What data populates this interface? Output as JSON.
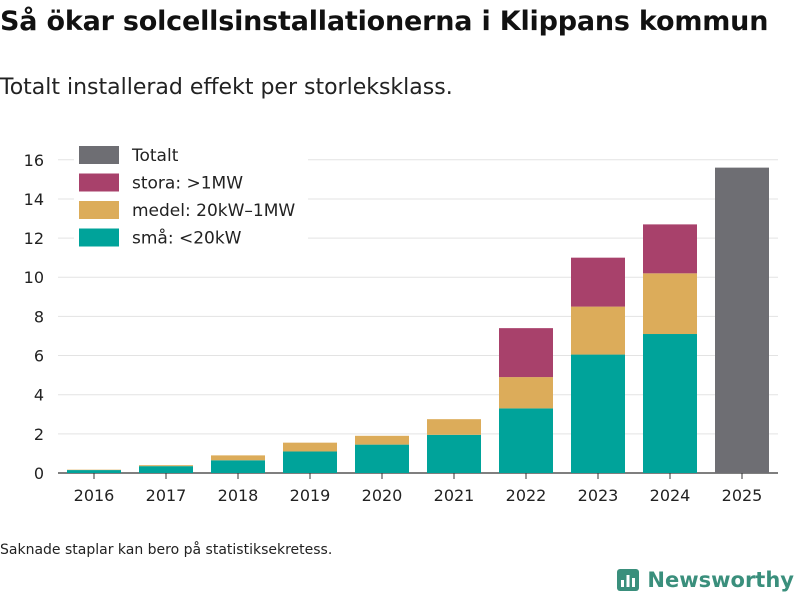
{
  "title": "Så ökar solcellsinstallationerna i Klippans kommun",
  "subtitle": "Totalt installerad effekt per storleksklass.",
  "footnote": "Saknade staplar kan bero på statistiksekretess.",
  "brand": {
    "name": "Newsworthy",
    "logo_icon": "bar-chart-logo-icon"
  },
  "colors": {
    "totalt": "#6e6e73",
    "stora": "#a8416b",
    "medel": "#dcac5a",
    "sma": "#00a39a"
  },
  "chart_data": {
    "type": "bar",
    "stacked": true,
    "title": "Så ökar solcellsinstallationerna i Klippans kommun",
    "subtitle": "Totalt installerad effekt per storleksklass.",
    "xlabel": "",
    "ylabel": "",
    "ylim": [
      0,
      16.5
    ],
    "yticks": [
      0,
      2,
      4,
      6,
      8,
      10,
      12,
      14,
      16
    ],
    "grid": true,
    "legend_position": "top-left",
    "categories": [
      "2016",
      "2017",
      "2018",
      "2019",
      "2020",
      "2021",
      "2022",
      "2023",
      "2024",
      "2025"
    ],
    "series": [
      {
        "name": "små: <20kW",
        "key": "sma",
        "values": [
          0.15,
          0.35,
          0.65,
          1.1,
          1.45,
          1.95,
          3.3,
          6.05,
          7.1,
          null
        ]
      },
      {
        "name": "medel: 20kW–1MW",
        "key": "medel",
        "values": [
          0.02,
          0.05,
          0.25,
          0.45,
          0.45,
          0.8,
          1.6,
          2.45,
          3.1,
          null
        ]
      },
      {
        "name": "stora: >1MW",
        "key": "stora",
        "values": [
          null,
          null,
          null,
          null,
          null,
          null,
          2.5,
          2.5,
          2.5,
          null
        ]
      },
      {
        "name": "Totalt",
        "key": "totalt",
        "values": [
          null,
          null,
          null,
          null,
          null,
          null,
          null,
          null,
          null,
          15.6
        ]
      }
    ],
    "legend_order": [
      "totalt",
      "stora",
      "medel",
      "sma"
    ]
  }
}
